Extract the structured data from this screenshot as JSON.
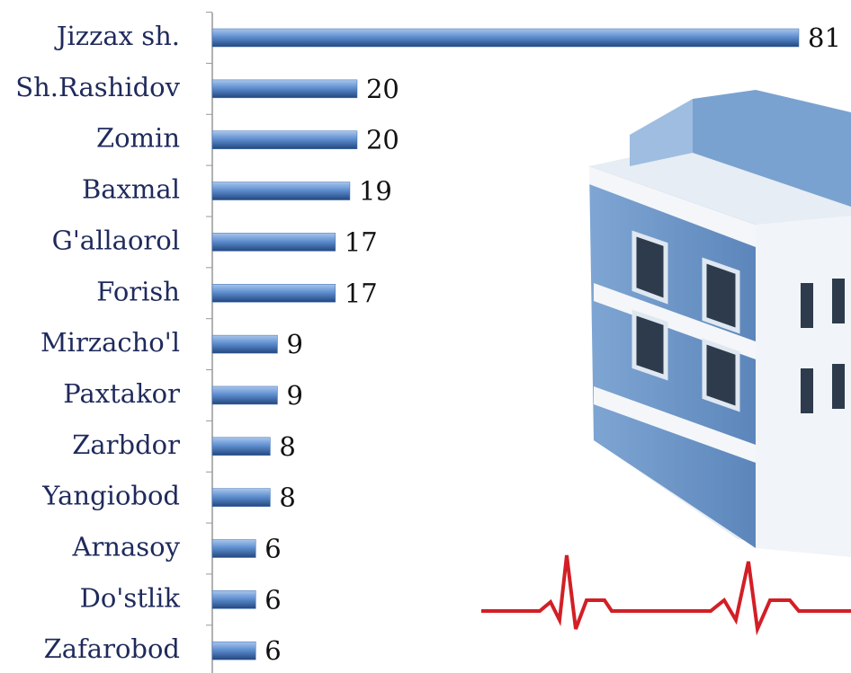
{
  "chart_data": {
    "type": "bar",
    "categories": [
      "Jizzax sh.",
      "Sh.Rashidov",
      "Zomin",
      "Baxmal",
      "G'allaorol",
      "Forish",
      "Mirzacho'l",
      "Paxtakor",
      "Zarbdor",
      "Yangiobod",
      "Arnasoy",
      "Do'stlik",
      "Zafarobod"
    ],
    "values": [
      81,
      20,
      20,
      19,
      17,
      17,
      9,
      9,
      8,
      8,
      6,
      6,
      6
    ],
    "color": "#3f6fb0"
  }
}
